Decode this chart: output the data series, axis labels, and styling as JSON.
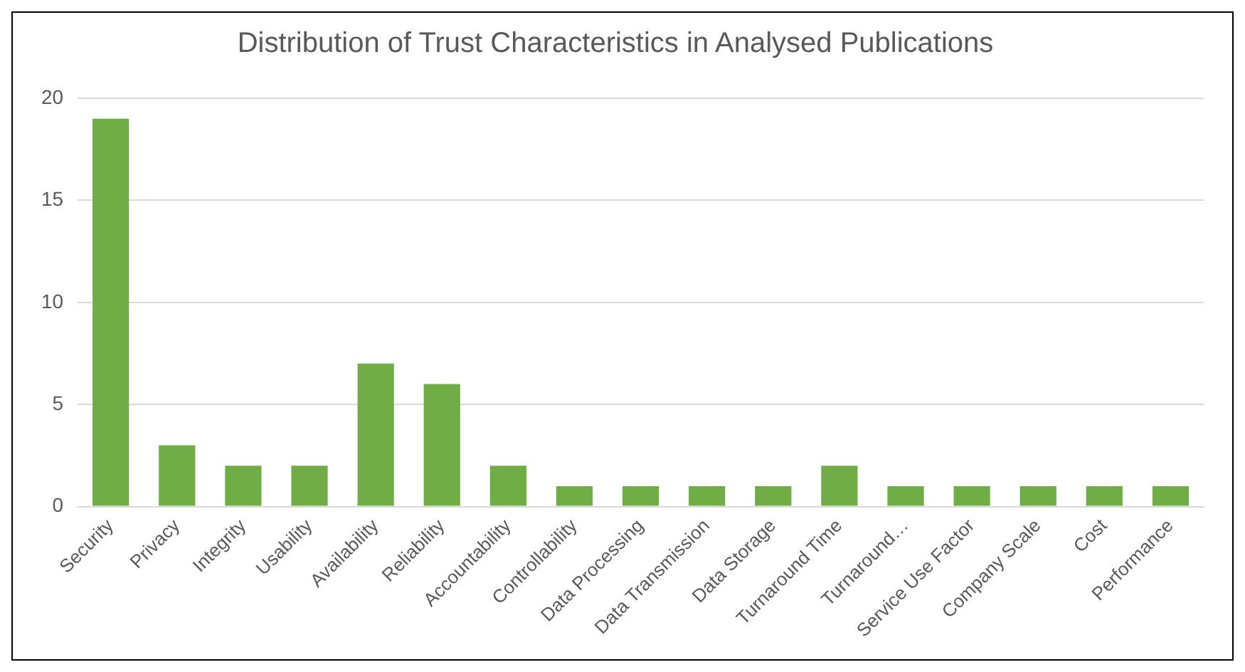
{
  "chart_data": {
    "type": "bar",
    "title": "Distribution of Trust Characteristics in Analysed Publications",
    "categories": [
      "Security",
      "Privacy",
      "Integrity",
      "Usability",
      "Availability",
      "Reliability",
      "Accountability",
      "Controllability",
      "Data Processing",
      "Data Transmission",
      "Data Storage",
      "Turnaround Time",
      "Turnaround…",
      "Service Use Factor",
      "Company Scale",
      "Cost",
      "Performance"
    ],
    "values": [
      19,
      3,
      2,
      2,
      7,
      6,
      2,
      1,
      1,
      1,
      1,
      2,
      1,
      1,
      1,
      1,
      1
    ],
    "color": "#70ad47",
    "ylim": [
      0,
      20
    ],
    "yticks": [
      0,
      5,
      10,
      15,
      20
    ],
    "grid": "y",
    "legend": false
  }
}
